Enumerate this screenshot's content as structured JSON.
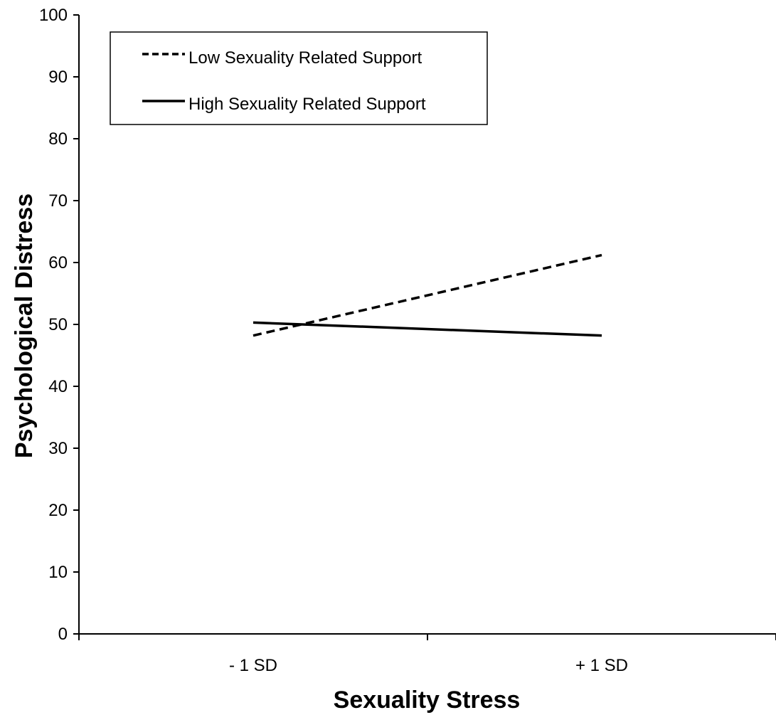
{
  "chart_data": {
    "type": "line",
    "title": "",
    "xlabel": "Sexuality Stress",
    "ylabel": "Psychological Distress",
    "categories": [
      "- 1 SD",
      "+ 1 SD"
    ],
    "ylim": [
      0,
      100
    ],
    "yticks": [
      0,
      10,
      20,
      30,
      40,
      50,
      60,
      70,
      80,
      90,
      100
    ],
    "grid": false,
    "legend_position": "top-left",
    "series": [
      {
        "name": "Low Sexuality Related Support",
        "style": "dashed",
        "color": "#000000",
        "values": [
          48.2,
          61.2
        ]
      },
      {
        "name": "High Sexuality Related Support",
        "style": "solid",
        "color": "#000000",
        "values": [
          50.3,
          48.2
        ]
      }
    ]
  }
}
